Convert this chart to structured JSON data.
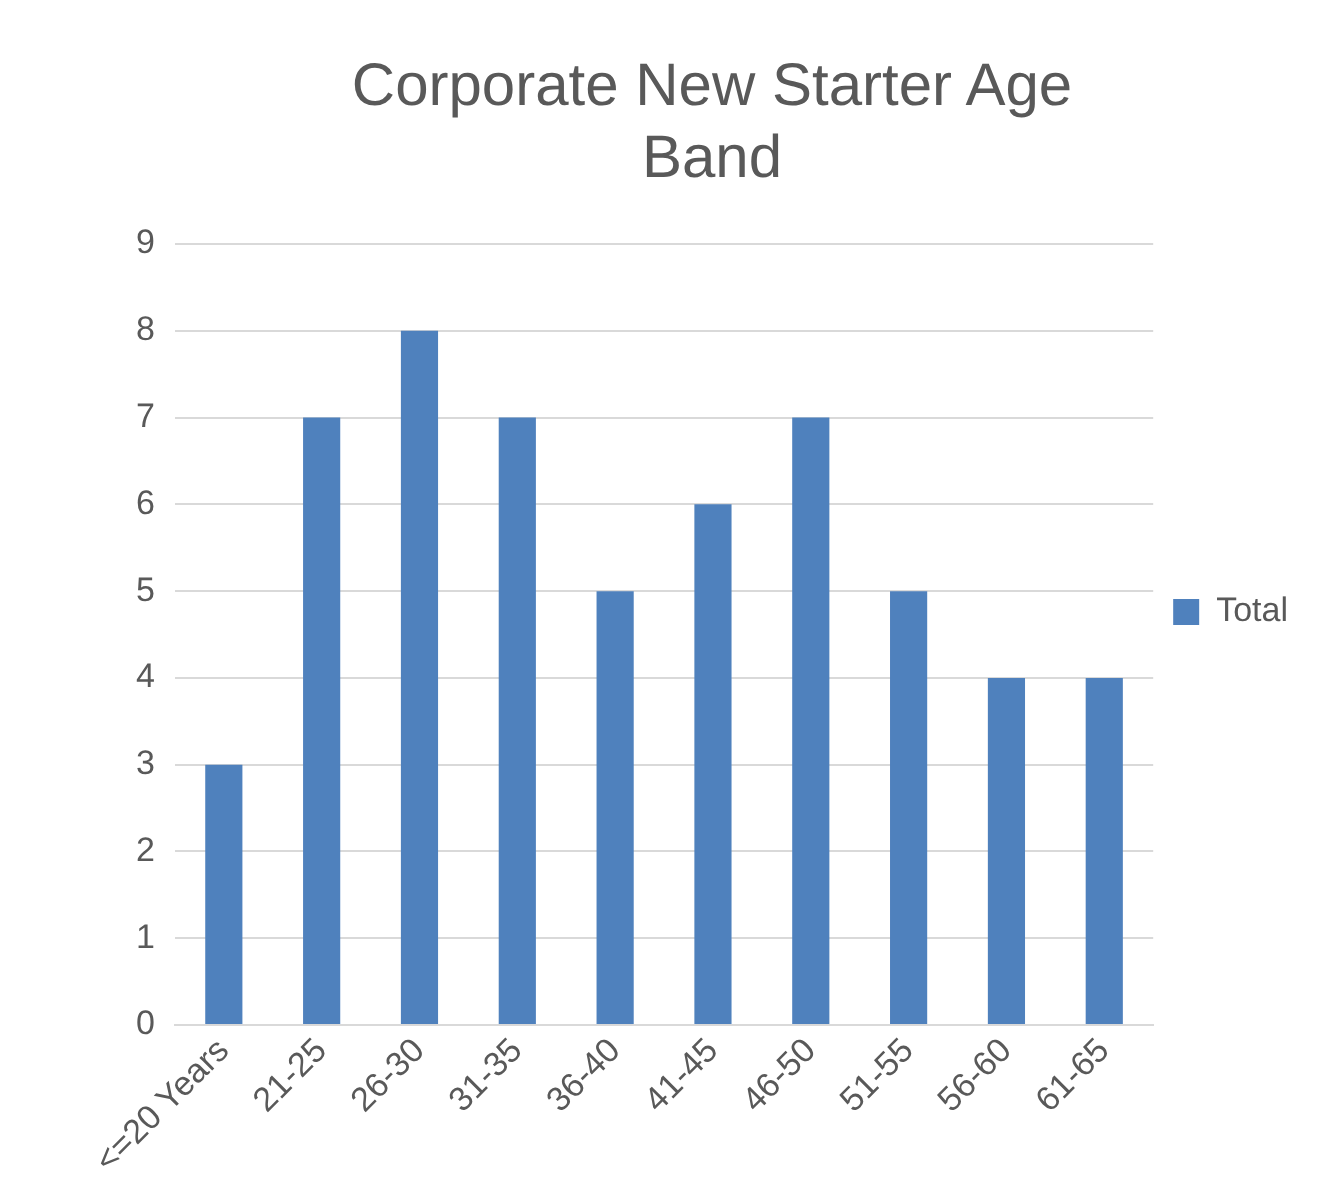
{
  "chart_data": {
    "type": "bar",
    "title": "Corporate New Starter Age Band",
    "categories": [
      "<=20 Years",
      "21-25",
      "26-30",
      "31-35",
      "36-40",
      "41-45",
      "46-50",
      "51-55",
      "56-60",
      "61-65"
    ],
    "series": [
      {
        "name": "Total",
        "color": "#4f81bd",
        "values": [
          3,
          7,
          8,
          7,
          5,
          6,
          7,
          5,
          4,
          4
        ]
      }
    ],
    "ylim": [
      0,
      9
    ],
    "yticks": [
      0,
      1,
      2,
      3,
      4,
      5,
      6,
      7,
      8,
      9
    ],
    "grid": "y",
    "legend": "right"
  }
}
